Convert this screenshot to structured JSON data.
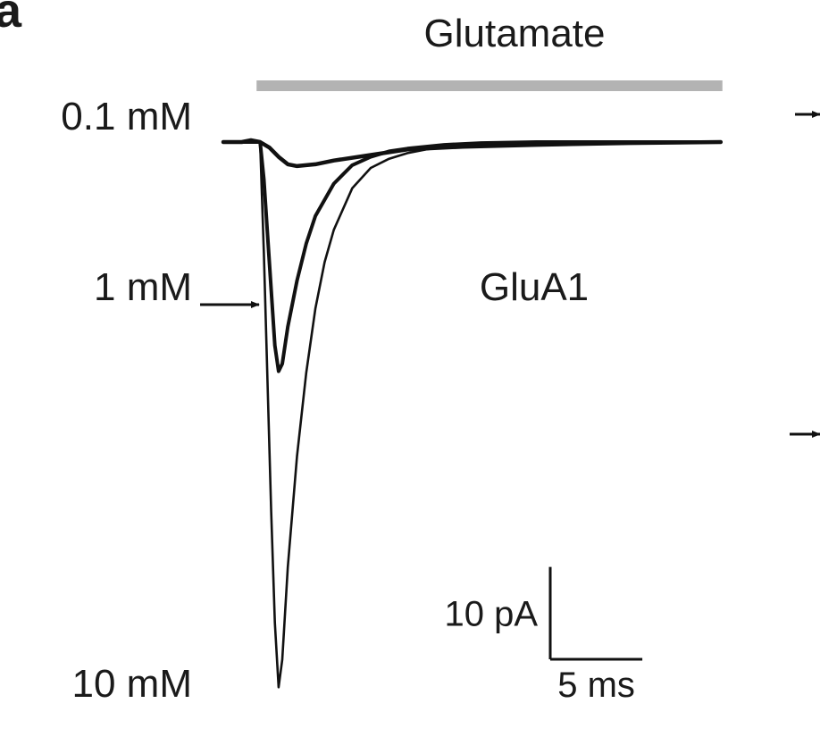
{
  "panel_label": "a",
  "chart_data": {
    "type": "line",
    "title": "",
    "stimulus_label": "Glutamate",
    "annotation": "GluA1",
    "xlabel": "",
    "ylabel": "",
    "x_units": "ms",
    "y_units": "pA",
    "xlim": [
      -2,
      27
    ],
    "ylim": [
      -61,
      3
    ],
    "stimulus_bar": {
      "start_ms": 0,
      "end_ms": 25,
      "color": "#b3b3b3"
    },
    "scale_bar": {
      "y_value": 10,
      "y_label": "10 pA",
      "x_value": 5,
      "x_label": "5 ms"
    },
    "series": [
      {
        "name": "0.1 mM",
        "x": [
          -2,
          -1,
          -0.5,
          0,
          0.5,
          1,
          1.5,
          2,
          3,
          4,
          6,
          8,
          11,
          15,
          20,
          25
        ],
        "y": [
          0,
          0,
          0.2,
          0,
          -0.6,
          -1.6,
          -2.4,
          -2.6,
          -2.4,
          -2.0,
          -1.4,
          -0.8,
          -0.5,
          -0.3,
          -0.1,
          0
        ]
      },
      {
        "name": "1 mM",
        "x": [
          -2,
          0,
          0.2,
          0.4,
          0.6,
          0.8,
          1.0,
          1.2,
          1.5,
          2.0,
          2.5,
          3.0,
          4.0,
          5.0,
          6.0,
          7.0,
          8.0,
          10,
          12,
          15,
          20,
          25
        ],
        "y": [
          0,
          0,
          -4,
          -10,
          -16,
          -22,
          -24.8,
          -24,
          -20,
          -15,
          -11,
          -8,
          -4.5,
          -2.5,
          -1.6,
          -1.0,
          -0.7,
          -0.3,
          -0.1,
          0,
          0,
          0
        ]
      },
      {
        "name": "10 mM",
        "x": [
          -2,
          0,
          0.2,
          0.4,
          0.6,
          0.8,
          1.0,
          1.2,
          1.5,
          2.0,
          2.5,
          3.0,
          3.5,
          4.0,
          5.0,
          6.0,
          7.0,
          8.0,
          9.0,
          10,
          12,
          15,
          20,
          25
        ],
        "y": [
          0,
          0,
          -12,
          -26,
          -40,
          -52,
          -59,
          -56,
          -46,
          -34,
          -25,
          -18,
          -13,
          -9.5,
          -5,
          -2.8,
          -1.8,
          -1.2,
          -0.8,
          -0.5,
          -0.2,
          0,
          0,
          0
        ]
      }
    ]
  }
}
